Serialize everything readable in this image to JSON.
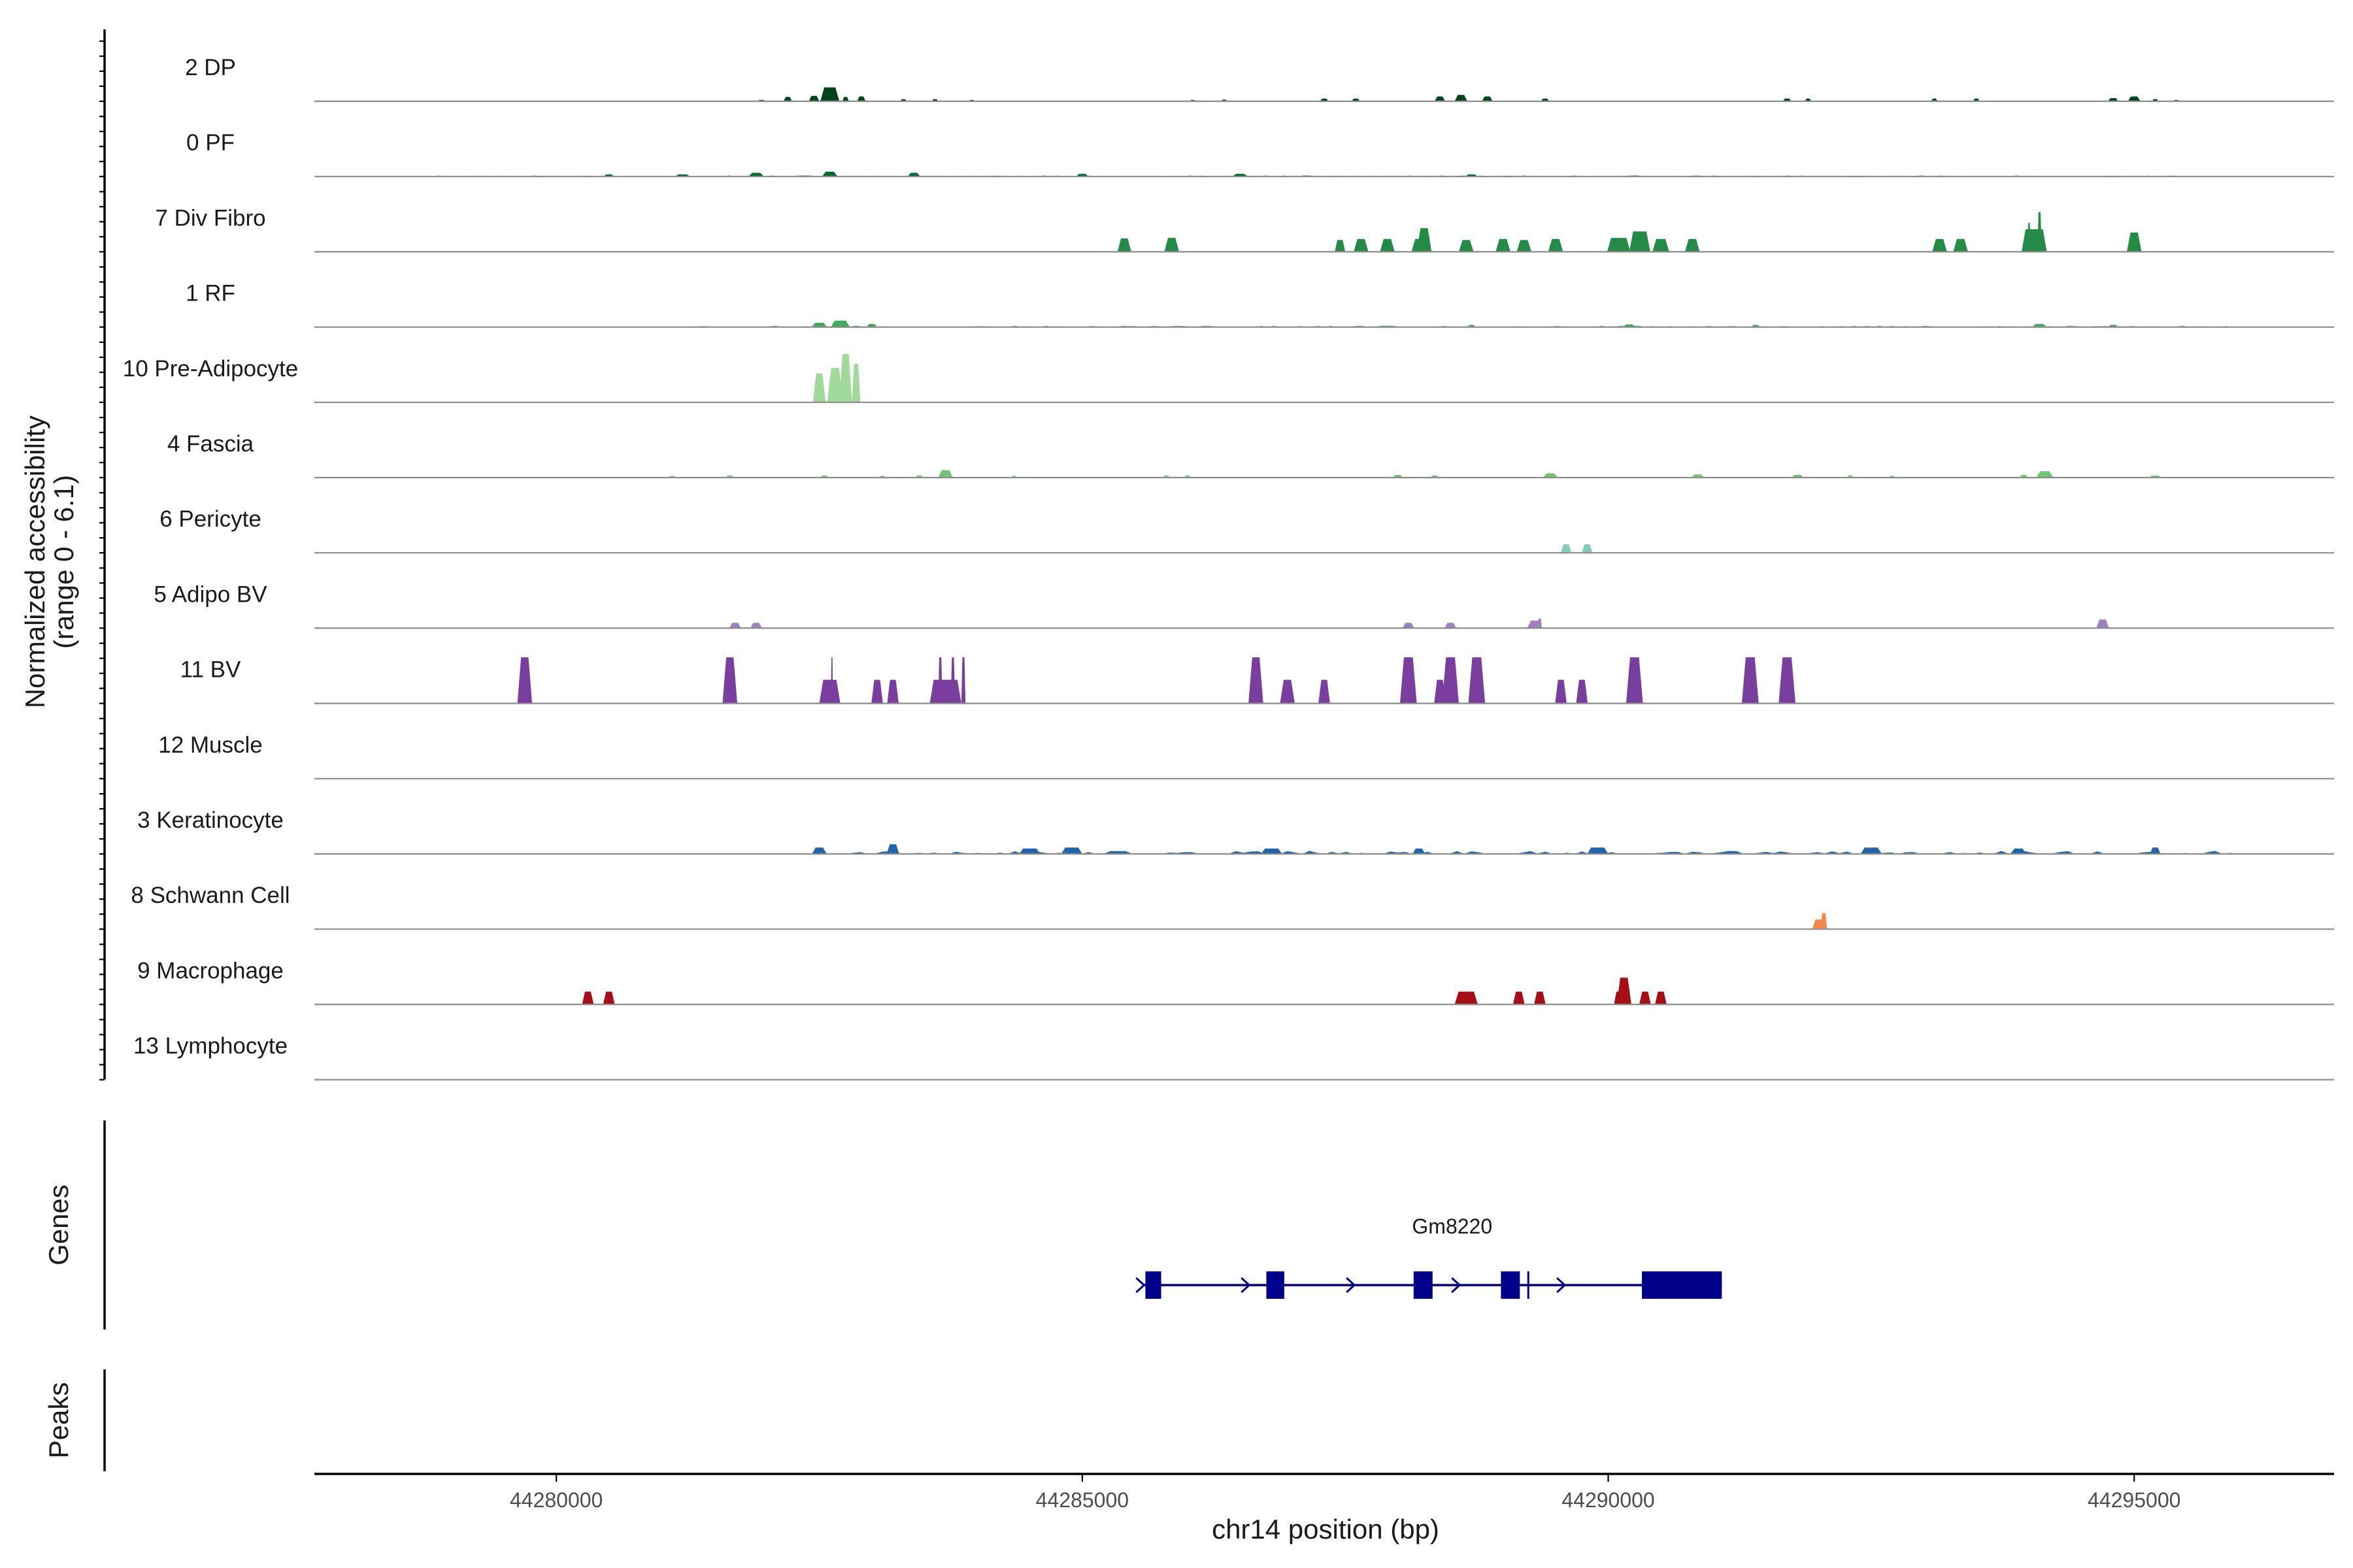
{
  "chart_data": {
    "type": "area",
    "chromosome": "chr14",
    "xlabel": "chr14 position (bp)",
    "ylabel": "Normalized accessibility",
    "ylabel_range": "(range 0 - 6.1)",
    "xlim": [
      44277700,
      44296900
    ],
    "ylim": [
      0,
      6.1
    ],
    "x_ticks": [
      {
        "value": 44280000,
        "label": "44280000"
      },
      {
        "value": 44285000,
        "label": "44285000"
      },
      {
        "value": 44290000,
        "label": "44290000"
      },
      {
        "value": 44295000,
        "label": "44295000"
      }
    ],
    "series": [
      {
        "name": "2 DP",
        "color": "#00441b",
        "peaks": [
          [
            44281950,
            0.12,
            80
          ],
          [
            44282200,
            0.4,
            80
          ],
          [
            44282450,
            0.5,
            100
          ],
          [
            44282600,
            1.3,
            180
          ],
          [
            44282750,
            0.4,
            60
          ],
          [
            44282900,
            0.45,
            80
          ],
          [
            44283300,
            0.2,
            60
          ],
          [
            44283600,
            0.2,
            60
          ],
          [
            44283950,
            0.12,
            60
          ],
          [
            44286050,
            0.12,
            60
          ],
          [
            44286350,
            0.15,
            60
          ],
          [
            44287300,
            0.25,
            80
          ],
          [
            44287600,
            0.25,
            80
          ],
          [
            44288400,
            0.45,
            100
          ],
          [
            44288600,
            0.6,
            120
          ],
          [
            44288850,
            0.45,
            100
          ],
          [
            44289400,
            0.25,
            80
          ],
          [
            44291700,
            0.25,
            80
          ],
          [
            44291900,
            0.25,
            60
          ],
          [
            44293100,
            0.25,
            60
          ],
          [
            44293500,
            0.25,
            60
          ],
          [
            44294800,
            0.3,
            100
          ],
          [
            44295000,
            0.45,
            120
          ],
          [
            44295200,
            0.2,
            60
          ],
          [
            44295400,
            0.12,
            60
          ]
        ]
      },
      {
        "name": "0 PF",
        "color": "#006d2c",
        "noise": {
          "from": 44278700,
          "to": 44295400,
          "step": 60,
          "amp": 0.1,
          "seed": 11
        },
        "peaks": [
          [
            44280500,
            0.2,
            100
          ],
          [
            44281200,
            0.2,
            150
          ],
          [
            44281900,
            0.35,
            150
          ],
          [
            44282600,
            0.45,
            150
          ],
          [
            44283400,
            0.35,
            120
          ],
          [
            44285000,
            0.25,
            120
          ],
          [
            44286500,
            0.25,
            150
          ],
          [
            44288700,
            0.2,
            120
          ]
        ]
      },
      {
        "name": "7 Div Fibro",
        "color": "#238b45",
        "peaks": [
          [
            44285400,
            1.25,
            130
          ],
          [
            44285850,
            1.3,
            140
          ],
          [
            44287450,
            1.1,
            100
          ],
          [
            44287650,
            1.2,
            140
          ],
          [
            44287900,
            1.2,
            140
          ],
          [
            44288200,
            1.2,
            140
          ],
          [
            44288250,
            2.2,
            140
          ],
          [
            44288650,
            1.1,
            140
          ],
          [
            44289000,
            1.2,
            140
          ],
          [
            44289200,
            1.1,
            140
          ],
          [
            44289500,
            1.2,
            140
          ],
          [
            44290100,
            1.3,
            220
          ],
          [
            44290300,
            1.9,
            200
          ],
          [
            44290500,
            1.2,
            160
          ],
          [
            44290800,
            1.2,
            140
          ],
          [
            44293150,
            1.2,
            140
          ],
          [
            44293350,
            1.2,
            140
          ],
          [
            44294050,
            2.1,
            240
          ],
          [
            44294100,
            3.7,
            40
          ],
          [
            44294000,
            2.7,
            30
          ],
          [
            44295000,
            1.8,
            140
          ]
        ]
      },
      {
        "name": "1 RF",
        "color": "#41ab5d",
        "noise": {
          "from": 44281300,
          "to": 44295900,
          "step": 60,
          "amp": 0.13,
          "seed": 23
        },
        "peaks": [
          [
            44282500,
            0.4,
            150
          ],
          [
            44282700,
            0.6,
            180
          ],
          [
            44283000,
            0.3,
            100
          ],
          [
            44288700,
            0.2,
            80
          ],
          [
            44290200,
            0.25,
            120
          ],
          [
            44291400,
            0.2,
            80
          ],
          [
            44294100,
            0.3,
            140
          ],
          [
            44294800,
            0.2,
            100
          ]
        ]
      },
      {
        "name": "10 Pre-Adipocyte",
        "color": "#a1d99b",
        "peaks": [
          [
            44282500,
            2.7,
            120
          ],
          [
            44282650,
            3.2,
            150
          ],
          [
            44282750,
            4.5,
            120
          ],
          [
            44282850,
            3.6,
            80
          ]
        ]
      },
      {
        "name": "4 Fascia",
        "color": "#74c476",
        "peaks": [
          [
            44281100,
            0.15,
            80
          ],
          [
            44281650,
            0.2,
            80
          ],
          [
            44282550,
            0.2,
            80
          ],
          [
            44283100,
            0.15,
            60
          ],
          [
            44283450,
            0.2,
            80
          ],
          [
            44283700,
            0.7,
            140
          ],
          [
            44284350,
            0.15,
            60
          ],
          [
            44285800,
            0.2,
            60
          ],
          [
            44286000,
            0.2,
            60
          ],
          [
            44288000,
            0.25,
            100
          ],
          [
            44288350,
            0.2,
            80
          ],
          [
            44289450,
            0.4,
            140
          ],
          [
            44290850,
            0.3,
            120
          ],
          [
            44291800,
            0.25,
            120
          ],
          [
            44292300,
            0.2,
            60
          ],
          [
            44292700,
            0.15,
            60
          ],
          [
            44293950,
            0.25,
            80
          ],
          [
            44294150,
            0.6,
            160
          ],
          [
            44295200,
            0.2,
            120
          ]
        ]
      },
      {
        "name": "6 Pericyte",
        "color": "#7fcdbb",
        "peaks": [
          [
            44289600,
            0.8,
            100
          ],
          [
            44289800,
            0.8,
            100
          ]
        ]
      },
      {
        "name": "5 Adipo BV",
        "color": "#9e7fc2",
        "peaks": [
          [
            44281700,
            0.5,
            110
          ],
          [
            44281900,
            0.5,
            110
          ],
          [
            44288100,
            0.5,
            110
          ],
          [
            44288500,
            0.5,
            110
          ],
          [
            44289300,
            0.7,
            140
          ],
          [
            44289350,
            0.9,
            40
          ],
          [
            44294700,
            0.8,
            120
          ]
        ]
      },
      {
        "name": "11 BV",
        "color": "#7a3e9e",
        "peaks": [
          [
            44279700,
            4.3,
            140
          ],
          [
            44281650,
            4.3,
            140
          ],
          [
            44282600,
            2.2,
            200
          ],
          [
            44282620,
            4.3,
            20
          ],
          [
            44283050,
            2.2,
            110
          ],
          [
            44283200,
            2.2,
            110
          ],
          [
            44283700,
            2.2,
            300
          ],
          [
            44283650,
            4.3,
            40
          ],
          [
            44283770,
            4.3,
            40
          ],
          [
            44283870,
            4.3,
            40
          ],
          [
            44286650,
            4.3,
            140
          ],
          [
            44286950,
            2.2,
            140
          ],
          [
            44287300,
            2.2,
            110
          ],
          [
            44288100,
            4.3,
            160
          ],
          [
            44288400,
            2.2,
            110
          ],
          [
            44288500,
            4.3,
            160
          ],
          [
            44288750,
            4.3,
            160
          ],
          [
            44289550,
            2.2,
            110
          ],
          [
            44289750,
            2.2,
            110
          ],
          [
            44290250,
            4.3,
            160
          ],
          [
            44291350,
            4.3,
            160
          ],
          [
            44291700,
            4.3,
            160
          ]
        ]
      },
      {
        "name": "12 Muscle",
        "color": "#6a51a3",
        "peaks": []
      },
      {
        "name": "3 Keratinocyte",
        "color": "#2166ac",
        "noise": {
          "from": 44282400,
          "to": 44296000,
          "step": 70,
          "amp": 0.28,
          "seed": 37
        },
        "peaks": [
          [
            44282500,
            0.6,
            140
          ],
          [
            44283200,
            0.9,
            120
          ],
          [
            44284500,
            0.5,
            200
          ],
          [
            44284900,
            0.6,
            200
          ],
          [
            44286800,
            0.5,
            200
          ],
          [
            44288200,
            0.5,
            120
          ],
          [
            44289900,
            0.6,
            200
          ],
          [
            44292500,
            0.6,
            200
          ],
          [
            44293900,
            0.5,
            150
          ],
          [
            44295200,
            0.6,
            100
          ]
        ]
      },
      {
        "name": "8 Schwann Cell",
        "color": "#f4874b",
        "peaks": [
          [
            44292000,
            0.9,
            120
          ],
          [
            44292050,
            1.5,
            60
          ]
        ]
      },
      {
        "name": "9 Macrophage",
        "color": "#a50f15",
        "peaks": [
          [
            44280300,
            1.2,
            110
          ],
          [
            44280500,
            1.2,
            110
          ],
          [
            44288650,
            1.2,
            220
          ],
          [
            44289150,
            1.2,
            110
          ],
          [
            44289350,
            1.2,
            110
          ],
          [
            44290150,
            2.5,
            140
          ],
          [
            44290100,
            1.2,
            90
          ],
          [
            44290350,
            1.2,
            110
          ],
          [
            44290500,
            1.2,
            110
          ]
        ]
      },
      {
        "name": "13 Lymphocyte",
        "color": "#08519c",
        "peaks": []
      }
    ],
    "genes": [
      {
        "name": "Gm8220",
        "color": "#00008b",
        "start": 44285580,
        "end": 44291080,
        "strand": "+",
        "exons": [
          [
            44285600,
            44285750
          ],
          [
            44286750,
            44286920
          ],
          [
            44288150,
            44288330
          ],
          [
            44288980,
            44289160
          ],
          [
            44290320,
            44291080
          ]
        ],
        "marker": 44289240,
        "arrows": [
          44285550,
          44286550,
          44287550,
          44288550,
          44289550
        ]
      }
    ],
    "peaks_track": []
  },
  "panels": {
    "genes_label": "Genes",
    "peaks_label": "Peaks"
  }
}
